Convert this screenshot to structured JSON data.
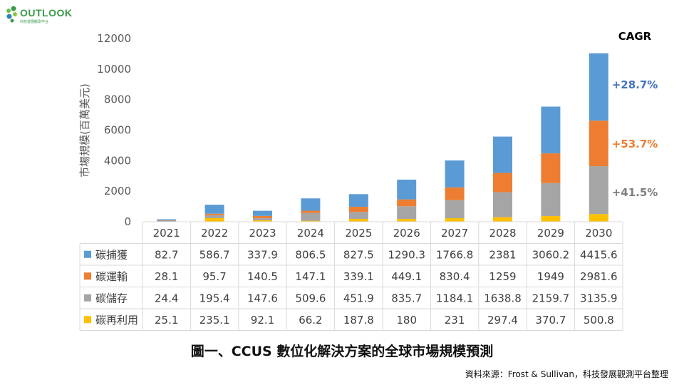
{
  "logo": {
    "text": "OUTLOOK",
    "subtitle": "科技發展觀測平台",
    "icon": "leaf-icon"
  },
  "caption": "圖一、CCUS 數位化解決方案的全球市場規模預測",
  "source": "資料來源：Frost & Sullivan，科技發展觀測平台整理",
  "chart_data": {
    "type": "bar",
    "stacked": true,
    "title": "",
    "ylabel": "市場規模(百萬美元)",
    "xlabel": "",
    "ylim": [
      0,
      12000
    ],
    "yticks": [
      0,
      2000,
      4000,
      6000,
      8000,
      10000,
      12000
    ],
    "grid": false,
    "legend": "data-table",
    "categories": [
      "2021",
      "2022",
      "2023",
      "2024",
      "2025",
      "2026",
      "2027",
      "2028",
      "2029",
      "2030"
    ],
    "series": [
      {
        "name": "碳再利用",
        "color": "#ffc000",
        "values": [
          25.1,
          235.1,
          92.1,
          66.2,
          187.8,
          180,
          231,
          297.4,
          370.7,
          500.8
        ],
        "labels": [
          "25.1",
          "235.1",
          "92.1",
          "66.2",
          "187.8",
          "180",
          "231",
          "297.4",
          "370.7",
          "500.8"
        ]
      },
      {
        "name": "碳儲存",
        "color": "#a5a5a5",
        "values": [
          24.4,
          195.4,
          147.6,
          509.6,
          451.9,
          835.7,
          1184.1,
          1638.8,
          2159.7,
          3135.9
        ],
        "labels": [
          "24.4",
          "195.4",
          "147.6",
          "509.6",
          "451.9",
          "835.7",
          "1184.1",
          "1638.8",
          "2159.7",
          "3135.9"
        ]
      },
      {
        "name": "碳運輸",
        "color": "#ed7d31",
        "values": [
          28.1,
          95.7,
          140.5,
          147.1,
          339.1,
          449.1,
          830.4,
          1259,
          1949,
          2981.6
        ],
        "labels": [
          "28.1",
          "95.7",
          "140.5",
          "147.1",
          "339.1",
          "449.1",
          "830.4",
          "1259",
          "1949",
          "2981.6"
        ]
      },
      {
        "name": "碳捕獲",
        "color": "#5b9bd5",
        "values": [
          82.7,
          586.7,
          337.9,
          806.5,
          827.5,
          1290.3,
          1766.8,
          2381,
          3060.2,
          4415.6
        ],
        "labels": [
          "82.7",
          "586.7",
          "337.9",
          "806.5",
          "827.5",
          "1290.3",
          "1766.8",
          "2381",
          "3060.2",
          "4415.6"
        ]
      }
    ],
    "table_order": [
      "碳捕獲",
      "碳運輸",
      "碳儲存",
      "碳再利用"
    ],
    "annotations": {
      "header": "CAGR",
      "items": [
        {
          "text": "+28.7%",
          "series": "碳捕獲",
          "color": "#4472c4"
        },
        {
          "text": "+53.7%",
          "series": "碳運輸",
          "color": "#ed7d31"
        },
        {
          "text": "+41.5%",
          "series": "碳儲存",
          "color": "#7f7f7f"
        }
      ]
    }
  }
}
